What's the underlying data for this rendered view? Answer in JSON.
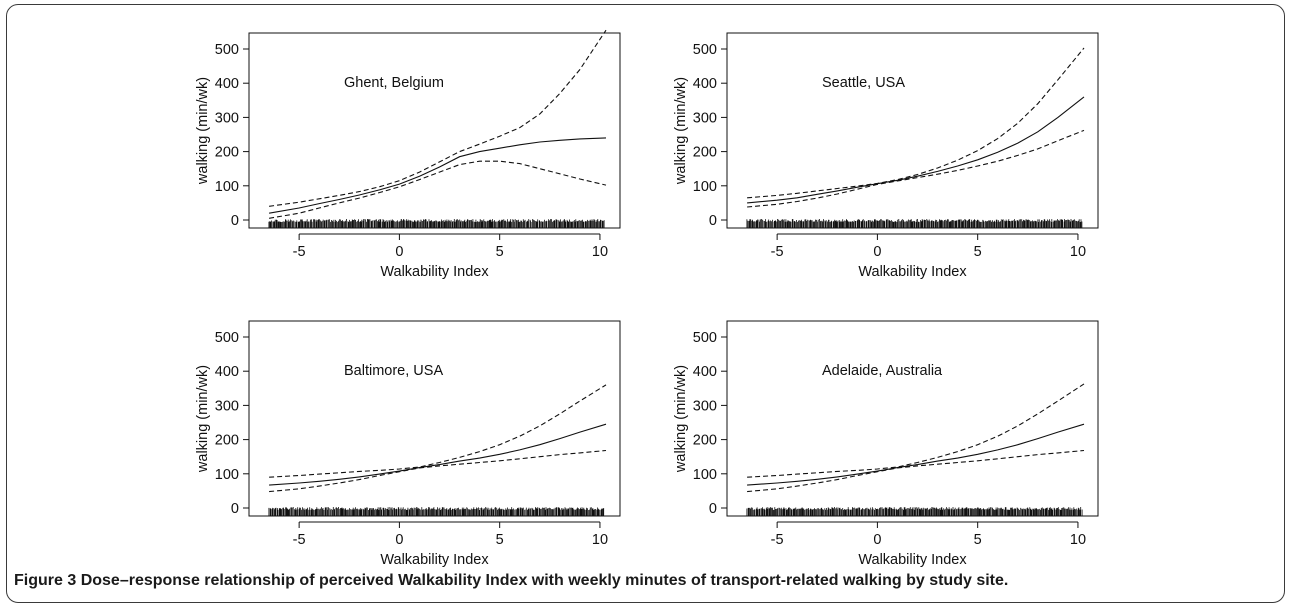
{
  "caption": {
    "label": "Figure 3",
    "text": "Dose–response relationship of perceived Walkability Index with weekly minutes of transport-related walking by study site."
  },
  "chart_data": [
    {
      "type": "line",
      "title": "Ghent, Belgium",
      "xlabel": "Walkability Index",
      "ylabel": "walking (min/wk)",
      "xlim": [
        -7.5,
        11
      ],
      "ylim": [
        0,
        550
      ],
      "xticks": [
        -5,
        0,
        5,
        10
      ],
      "yticks": [
        0,
        100,
        200,
        300,
        400,
        500
      ],
      "rug_range": [
        -6.5,
        10.2
      ],
      "series": [
        {
          "style": "solid",
          "x": [
            -6.5,
            -5,
            -4,
            -3,
            -2,
            -1,
            0,
            1,
            2,
            3,
            4,
            5,
            6,
            7,
            8,
            9,
            10.3
          ],
          "y": [
            20,
            35,
            48,
            60,
            73,
            88,
            105,
            128,
            155,
            185,
            200,
            210,
            220,
            228,
            233,
            237,
            240
          ]
        },
        {
          "style": "dashed",
          "x": [
            -6.5,
            -5,
            -4,
            -3,
            -2,
            -1,
            0,
            1,
            2,
            3,
            4,
            5,
            6,
            7,
            8,
            9,
            10.3
          ],
          "y": [
            40,
            52,
            62,
            72,
            83,
            97,
            115,
            140,
            170,
            200,
            222,
            245,
            270,
            310,
            370,
            440,
            555
          ]
        },
        {
          "style": "dashed",
          "x": [
            -6.5,
            -5,
            -4,
            -3,
            -2,
            -1,
            0,
            1,
            2,
            3,
            4,
            5,
            6,
            7,
            8,
            9,
            10.3
          ],
          "y": [
            5,
            20,
            35,
            50,
            64,
            80,
            97,
            118,
            140,
            162,
            172,
            172,
            165,
            150,
            135,
            120,
            102
          ]
        }
      ]
    },
    {
      "type": "line",
      "title": "Seattle, USA",
      "xlabel": "Walkability Index",
      "ylabel": "walking (min/wk)",
      "xlim": [
        -7.5,
        11
      ],
      "ylim": [
        0,
        550
      ],
      "xticks": [
        -5,
        0,
        5,
        10
      ],
      "yticks": [
        0,
        100,
        200,
        300,
        400,
        500
      ],
      "rug_range": [
        -6.5,
        10.2
      ],
      "series": [
        {
          "style": "solid",
          "x": [
            -6.5,
            -5,
            -4,
            -3,
            -2,
            -1,
            0,
            1,
            2,
            3,
            4,
            5,
            6,
            7,
            8,
            9,
            10.3
          ],
          "y": [
            50,
            58,
            65,
            75,
            85,
            96,
            106,
            116,
            128,
            142,
            158,
            176,
            198,
            225,
            258,
            300,
            360
          ]
        },
        {
          "style": "dashed",
          "x": [
            -6.5,
            -5,
            -4,
            -3,
            -2,
            -1,
            0,
            1,
            2,
            3,
            4,
            5,
            6,
            7,
            8,
            9,
            10.3
          ],
          "y": [
            65,
            72,
            78,
            85,
            92,
            99,
            107,
            118,
            133,
            152,
            175,
            203,
            238,
            283,
            340,
            410,
            503
          ]
        },
        {
          "style": "dashed",
          "x": [
            -6.5,
            -5,
            -4,
            -3,
            -2,
            -1,
            0,
            1,
            2,
            3,
            4,
            5,
            6,
            7,
            8,
            9,
            10.3
          ],
          "y": [
            38,
            46,
            54,
            64,
            76,
            90,
            104,
            114,
            124,
            134,
            145,
            158,
            172,
            189,
            208,
            232,
            262
          ]
        }
      ]
    },
    {
      "type": "line",
      "title": "Baltimore, USA",
      "xlabel": "Walkability Index",
      "ylabel": "walking (min/wk)",
      "xlim": [
        -7.5,
        11
      ],
      "ylim": [
        0,
        550
      ],
      "xticks": [
        -5,
        0,
        5,
        10
      ],
      "yticks": [
        0,
        100,
        200,
        300,
        400,
        500
      ],
      "rug_range": [
        -6.5,
        10.2
      ],
      "series": [
        {
          "style": "solid",
          "x": [
            -6.5,
            -5,
            -4,
            -3,
            -2,
            -1,
            0,
            1,
            2,
            3,
            4,
            5,
            6,
            7,
            8,
            9,
            10.3
          ],
          "y": [
            67,
            73,
            78,
            84,
            91,
            99,
            108,
            118,
            127,
            137,
            146,
            157,
            170,
            185,
            203,
            222,
            245
          ]
        },
        {
          "style": "dashed",
          "x": [
            -6.5,
            -5,
            -4,
            -3,
            -2,
            -1,
            0,
            1,
            2,
            3,
            4,
            5,
            6,
            7,
            8,
            9,
            10.3
          ],
          "y": [
            90,
            95,
            99,
            103,
            107,
            110,
            114,
            120,
            133,
            148,
            165,
            185,
            210,
            240,
            275,
            313,
            360
          ]
        },
        {
          "style": "dashed",
          "x": [
            -6.5,
            -5,
            -4,
            -3,
            -2,
            -1,
            0,
            1,
            2,
            3,
            4,
            5,
            6,
            7,
            8,
            9,
            10.3
          ],
          "y": [
            48,
            56,
            64,
            73,
            83,
            95,
            106,
            117,
            123,
            128,
            133,
            138,
            144,
            150,
            156,
            161,
            168
          ]
        }
      ]
    },
    {
      "type": "line",
      "title": "Adelaide, Australia",
      "xlabel": "Walkability Index",
      "ylabel": "walking (min/wk)",
      "xlim": [
        -7.5,
        11
      ],
      "ylim": [
        0,
        550
      ],
      "xticks": [
        -5,
        0,
        5,
        10
      ],
      "yticks": [
        0,
        100,
        200,
        300,
        400,
        500
      ],
      "rug_range": [
        -6.5,
        10.2
      ],
      "series": [
        {
          "style": "solid",
          "x": [
            -6.5,
            -5,
            -4,
            -3,
            -2,
            -1,
            0,
            1,
            2,
            3,
            4,
            5,
            6,
            7,
            8,
            9,
            10.3
          ],
          "y": [
            67,
            73,
            78,
            84,
            91,
            99,
            108,
            118,
            127,
            137,
            146,
            157,
            170,
            185,
            203,
            222,
            245
          ]
        },
        {
          "style": "dashed",
          "x": [
            -6.5,
            -5,
            -4,
            -3,
            -2,
            -1,
            0,
            1,
            2,
            3,
            4,
            5,
            6,
            7,
            8,
            9,
            10.3
          ],
          "y": [
            90,
            95,
            99,
            103,
            107,
            110,
            114,
            120,
            133,
            148,
            165,
            185,
            210,
            240,
            275,
            313,
            363
          ]
        },
        {
          "style": "dashed",
          "x": [
            -6.5,
            -5,
            -4,
            -3,
            -2,
            -1,
            0,
            1,
            2,
            3,
            4,
            5,
            6,
            7,
            8,
            9,
            10.3
          ],
          "y": [
            48,
            56,
            64,
            73,
            83,
            95,
            106,
            117,
            123,
            128,
            133,
            138,
            144,
            150,
            156,
            161,
            168
          ]
        }
      ]
    }
  ]
}
